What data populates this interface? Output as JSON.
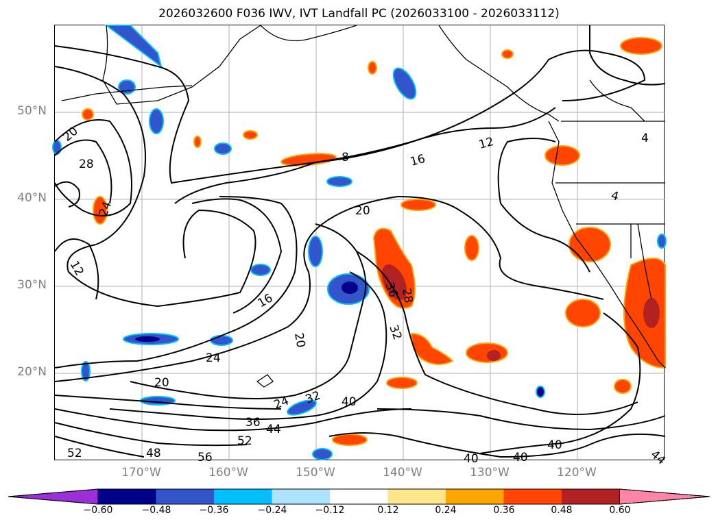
{
  "title": "2026032600 F036 IWV, IVT Landfall PC (2026033100 - 2026033112)",
  "lat_labels": [
    "50°N",
    "40°N",
    "30°N",
    "20°N"
  ],
  "lon_labels": [
    "170°W",
    "160°W",
    "150°W",
    "140°W",
    "130°W",
    "120°W"
  ],
  "contour_labels": [
    "20",
    "28",
    "24",
    "12",
    "8",
    "16",
    "12",
    "4",
    "4",
    "20",
    "16",
    "20",
    "36",
    "28",
    "32",
    "24",
    "20",
    "24",
    "32",
    "40",
    "36",
    "44",
    "52",
    "48",
    "56",
    "52",
    "40",
    "40",
    "40",
    "44"
  ],
  "colorbar": {
    "ticks": [
      "−0.60",
      "−0.48",
      "−0.36",
      "−0.24",
      "−0.12",
      "0.12",
      "0.24",
      "0.36",
      "0.48",
      "0.60"
    ],
    "colors": [
      "#9b30d9",
      "#00008b",
      "#3355cc",
      "#00bfff",
      "#aee3ff",
      "#ffffff",
      "#ffe68a",
      "#ffa500",
      "#ff4500",
      "#b22222",
      "#ff85a8"
    ]
  }
}
